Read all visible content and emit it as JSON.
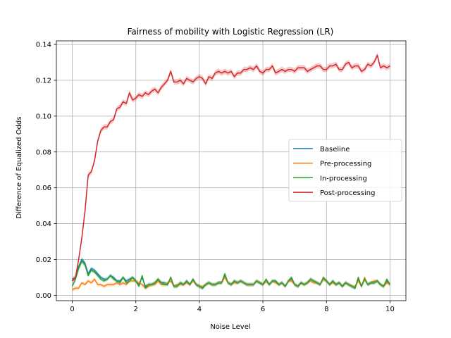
{
  "chart_data": {
    "type": "line",
    "title": "Fairness of mobility with Logistic Regression (LR)",
    "xlabel": "Noise Level",
    "ylabel": "Difference of Equalized Odds",
    "xlim": [
      -0.5,
      10.5
    ],
    "ylim": [
      -0.003,
      0.142
    ],
    "xticks": [
      0,
      2,
      4,
      6,
      8,
      10
    ],
    "yticks": [
      0.0,
      0.02,
      0.04,
      0.06,
      0.08,
      0.1,
      0.12,
      0.14
    ],
    "xtick_labels": [
      "0",
      "2",
      "4",
      "6",
      "8",
      "10"
    ],
    "ytick_labels": [
      "0.00",
      "0.02",
      "0.04",
      "0.06",
      "0.08",
      "0.10",
      "0.12",
      "0.14"
    ],
    "grid": true,
    "legend_position": "center-right",
    "shaded_band": true,
    "x": [
      0,
      0.1,
      0.2,
      0.3,
      0.4,
      0.5,
      0.6,
      0.7,
      0.8,
      0.9,
      1.0,
      1.1,
      1.2,
      1.3,
      1.4,
      1.5,
      1.6,
      1.7,
      1.8,
      1.9,
      2.0,
      2.1,
      2.2,
      2.3,
      2.4,
      2.5,
      2.6,
      2.7,
      2.8,
      2.9,
      3.0,
      3.1,
      3.2,
      3.3,
      3.4,
      3.5,
      3.6,
      3.7,
      3.8,
      3.9,
      4.0,
      4.1,
      4.2,
      4.3,
      4.4,
      4.5,
      4.6,
      4.7,
      4.8,
      4.9,
      5.0,
      5.1,
      5.2,
      5.3,
      5.4,
      5.5,
      5.6,
      5.7,
      5.8,
      5.9,
      6.0,
      6.1,
      6.2,
      6.3,
      6.4,
      6.5,
      6.6,
      6.7,
      6.8,
      6.9,
      7.0,
      7.1,
      7.2,
      7.3,
      7.4,
      7.5,
      7.6,
      7.7,
      7.8,
      7.9,
      8.0,
      8.1,
      8.2,
      8.3,
      8.4,
      8.5,
      8.6,
      8.7,
      8.8,
      8.9,
      9.0,
      9.1,
      9.2,
      9.3,
      9.4,
      9.5,
      9.6,
      9.7,
      9.8,
      9.9,
      10.0
    ],
    "series": [
      {
        "name": "Baseline",
        "color": "#1f77b4",
        "values": [
          0.009,
          0.01,
          0.016,
          0.02,
          0.018,
          0.012,
          0.015,
          0.014,
          0.012,
          0.01,
          0.009,
          0.009,
          0.011,
          0.01,
          0.008,
          0.008,
          0.01,
          0.008,
          0.009,
          0.01,
          0.008,
          0.006,
          0.01,
          0.005,
          0.006,
          0.006,
          0.007,
          0.009,
          0.007,
          0.007,
          0.006,
          0.01,
          0.005,
          0.005,
          0.007,
          0.006,
          0.008,
          0.006,
          0.009,
          0.006,
          0.005,
          0.004,
          0.006,
          0.007,
          0.006,
          0.006,
          0.007,
          0.007,
          0.011,
          0.007,
          0.006,
          0.008,
          0.007,
          0.008,
          0.007,
          0.006,
          0.006,
          0.006,
          0.008,
          0.007,
          0.006,
          0.008,
          0.006,
          0.008,
          0.008,
          0.006,
          0.007,
          0.005,
          0.008,
          0.009,
          0.006,
          0.005,
          0.007,
          0.006,
          0.007,
          0.009,
          0.008,
          0.007,
          0.006,
          0.009,
          0.008,
          0.006,
          0.008,
          0.006,
          0.007,
          0.005,
          0.007,
          0.006,
          0.005,
          0.004,
          0.009,
          0.005,
          0.009,
          0.006,
          0.007,
          0.007,
          0.008,
          0.006,
          0.005,
          0.008,
          0.006
        ],
        "band": [
          0.0012,
          0.0015,
          0.0015,
          0.0015,
          0.0012,
          0.0012,
          0.001,
          0.001,
          0.001,
          0.001,
          0.001,
          0.001,
          0.001,
          0.001,
          0.001,
          0.001,
          0.001,
          0.001,
          0.001,
          0.001,
          0.001,
          0.001,
          0.001,
          0.001,
          0.001,
          0.001,
          0.001,
          0.001,
          0.001,
          0.001,
          0.001,
          0.001,
          0.001,
          0.001,
          0.001,
          0.001,
          0.001,
          0.001,
          0.001,
          0.001,
          0.001,
          0.001,
          0.001,
          0.001,
          0.001,
          0.001,
          0.001,
          0.001,
          0.001,
          0.001,
          0.001,
          0.001,
          0.001,
          0.001,
          0.001,
          0.001,
          0.001,
          0.001,
          0.001,
          0.001,
          0.001,
          0.001,
          0.001,
          0.001,
          0.001,
          0.001,
          0.001,
          0.001,
          0.001,
          0.001,
          0.001,
          0.001,
          0.001,
          0.001,
          0.001,
          0.001,
          0.001,
          0.001,
          0.001,
          0.001,
          0.001,
          0.001,
          0.001,
          0.001,
          0.001,
          0.001,
          0.001,
          0.001,
          0.001,
          0.001,
          0.001,
          0.001,
          0.001,
          0.001,
          0.001,
          0.001,
          0.001,
          0.001,
          0.001,
          0.001,
          0.001
        ]
      },
      {
        "name": "Pre-processing",
        "color": "#ff7f0e",
        "values": [
          0.003,
          0.004,
          0.004,
          0.007,
          0.006,
          0.008,
          0.007,
          0.009,
          0.006,
          0.006,
          0.005,
          0.006,
          0.006,
          0.006,
          0.007,
          0.006,
          0.007,
          0.006,
          0.008,
          0.008,
          0.008,
          0.007,
          0.006,
          0.004,
          0.005,
          0.006,
          0.006,
          0.008,
          0.006,
          0.006,
          0.007,
          0.008,
          0.005,
          0.006,
          0.006,
          0.006,
          0.007,
          0.006,
          0.008,
          0.006,
          0.005,
          0.005,
          0.006,
          0.007,
          0.006,
          0.006,
          0.007,
          0.007,
          0.01,
          0.007,
          0.006,
          0.007,
          0.007,
          0.008,
          0.007,
          0.006,
          0.006,
          0.006,
          0.008,
          0.007,
          0.006,
          0.008,
          0.006,
          0.008,
          0.007,
          0.006,
          0.007,
          0.005,
          0.008,
          0.008,
          0.006,
          0.005,
          0.007,
          0.006,
          0.007,
          0.008,
          0.007,
          0.007,
          0.006,
          0.009,
          0.008,
          0.006,
          0.007,
          0.006,
          0.007,
          0.005,
          0.007,
          0.006,
          0.005,
          0.005,
          0.008,
          0.005,
          0.01,
          0.006,
          0.007,
          0.008,
          0.008,
          0.006,
          0.005,
          0.007,
          0.006
        ],
        "band": [
          0.001,
          0.001,
          0.001,
          0.001,
          0.001,
          0.001,
          0.001,
          0.001,
          0.001,
          0.001,
          0.001,
          0.001,
          0.001,
          0.001,
          0.001,
          0.001,
          0.001,
          0.001,
          0.001,
          0.001,
          0.001,
          0.001,
          0.001,
          0.001,
          0.001,
          0.001,
          0.001,
          0.001,
          0.001,
          0.001,
          0.001,
          0.001,
          0.001,
          0.001,
          0.001,
          0.001,
          0.001,
          0.001,
          0.001,
          0.001,
          0.001,
          0.001,
          0.001,
          0.001,
          0.001,
          0.001,
          0.001,
          0.001,
          0.001,
          0.001,
          0.001,
          0.001,
          0.001,
          0.001,
          0.001,
          0.001,
          0.001,
          0.001,
          0.001,
          0.001,
          0.001,
          0.001,
          0.001,
          0.001,
          0.001,
          0.001,
          0.001,
          0.001,
          0.001,
          0.001,
          0.001,
          0.001,
          0.001,
          0.001,
          0.001,
          0.001,
          0.001,
          0.001,
          0.001,
          0.001,
          0.001,
          0.001,
          0.001,
          0.001,
          0.001,
          0.001,
          0.001,
          0.001,
          0.001,
          0.001,
          0.001,
          0.001,
          0.001,
          0.001,
          0.001,
          0.001,
          0.001,
          0.001,
          0.001,
          0.001,
          0.001
        ]
      },
      {
        "name": "In-processing",
        "color": "#2ca02c",
        "values": [
          0.005,
          0.009,
          0.015,
          0.019,
          0.017,
          0.011,
          0.014,
          0.013,
          0.011,
          0.009,
          0.008,
          0.009,
          0.011,
          0.009,
          0.008,
          0.007,
          0.01,
          0.007,
          0.008,
          0.01,
          0.008,
          0.005,
          0.011,
          0.004,
          0.006,
          0.006,
          0.007,
          0.009,
          0.007,
          0.006,
          0.006,
          0.01,
          0.005,
          0.005,
          0.007,
          0.006,
          0.008,
          0.006,
          0.009,
          0.006,
          0.005,
          0.004,
          0.006,
          0.007,
          0.006,
          0.006,
          0.007,
          0.007,
          0.012,
          0.007,
          0.006,
          0.008,
          0.007,
          0.008,
          0.007,
          0.006,
          0.006,
          0.006,
          0.008,
          0.007,
          0.006,
          0.009,
          0.006,
          0.008,
          0.008,
          0.006,
          0.007,
          0.005,
          0.008,
          0.01,
          0.006,
          0.005,
          0.007,
          0.006,
          0.007,
          0.009,
          0.008,
          0.007,
          0.006,
          0.01,
          0.008,
          0.006,
          0.008,
          0.006,
          0.007,
          0.005,
          0.007,
          0.006,
          0.005,
          0.004,
          0.01,
          0.005,
          0.009,
          0.006,
          0.007,
          0.007,
          0.008,
          0.006,
          0.005,
          0.009,
          0.006
        ],
        "band": [
          0.0012,
          0.0015,
          0.0015,
          0.0015,
          0.0012,
          0.0012,
          0.001,
          0.001,
          0.001,
          0.001,
          0.001,
          0.001,
          0.001,
          0.001,
          0.001,
          0.001,
          0.001,
          0.001,
          0.001,
          0.001,
          0.001,
          0.001,
          0.001,
          0.001,
          0.001,
          0.001,
          0.001,
          0.001,
          0.001,
          0.001,
          0.001,
          0.001,
          0.001,
          0.001,
          0.001,
          0.001,
          0.001,
          0.001,
          0.001,
          0.001,
          0.001,
          0.001,
          0.001,
          0.001,
          0.001,
          0.001,
          0.001,
          0.001,
          0.001,
          0.001,
          0.001,
          0.001,
          0.001,
          0.001,
          0.001,
          0.001,
          0.001,
          0.001,
          0.001,
          0.001,
          0.001,
          0.001,
          0.001,
          0.001,
          0.001,
          0.001,
          0.001,
          0.001,
          0.001,
          0.001,
          0.001,
          0.001,
          0.001,
          0.001,
          0.001,
          0.001,
          0.001,
          0.001,
          0.001,
          0.001,
          0.001,
          0.001,
          0.001,
          0.001,
          0.001,
          0.001,
          0.001,
          0.001,
          0.001,
          0.001,
          0.001,
          0.001,
          0.001,
          0.001,
          0.001,
          0.001,
          0.001,
          0.001,
          0.001,
          0.001,
          0.001
        ]
      },
      {
        "name": "Post-processing",
        "color": "#d62728",
        "values": [
          0.008,
          0.01,
          0.02,
          0.032,
          0.047,
          0.067,
          0.069,
          0.075,
          0.086,
          0.092,
          0.094,
          0.094,
          0.097,
          0.098,
          0.104,
          0.105,
          0.108,
          0.107,
          0.113,
          0.109,
          0.11,
          0.112,
          0.111,
          0.113,
          0.112,
          0.114,
          0.115,
          0.113,
          0.116,
          0.118,
          0.12,
          0.125,
          0.119,
          0.119,
          0.12,
          0.118,
          0.121,
          0.12,
          0.119,
          0.121,
          0.122,
          0.121,
          0.118,
          0.122,
          0.121,
          0.124,
          0.125,
          0.124,
          0.125,
          0.124,
          0.125,
          0.122,
          0.124,
          0.124,
          0.126,
          0.126,
          0.127,
          0.126,
          0.128,
          0.125,
          0.124,
          0.126,
          0.126,
          0.128,
          0.124,
          0.125,
          0.126,
          0.125,
          0.126,
          0.126,
          0.125,
          0.127,
          0.127,
          0.127,
          0.125,
          0.126,
          0.127,
          0.128,
          0.128,
          0.126,
          0.126,
          0.128,
          0.128,
          0.129,
          0.126,
          0.126,
          0.129,
          0.13,
          0.127,
          0.128,
          0.128,
          0.125,
          0.126,
          0.129,
          0.128,
          0.13,
          0.134,
          0.127,
          0.128,
          0.127,
          0.128
        ],
        "band": [
          0.001,
          0.001,
          0.0015,
          0.0015,
          0.0015,
          0.0015,
          0.0015,
          0.0015,
          0.0015,
          0.0015,
          0.0015,
          0.0015,
          0.0015,
          0.0015,
          0.0015,
          0.0015,
          0.0015,
          0.0015,
          0.0015,
          0.0015,
          0.0015,
          0.0015,
          0.0015,
          0.0015,
          0.0015,
          0.0015,
          0.0015,
          0.0015,
          0.0015,
          0.0015,
          0.0015,
          0.0015,
          0.0015,
          0.0015,
          0.0015,
          0.0015,
          0.0015,
          0.0015,
          0.0015,
          0.0015,
          0.0015,
          0.0015,
          0.0015,
          0.0015,
          0.0015,
          0.0015,
          0.0015,
          0.0015,
          0.0015,
          0.0015,
          0.0015,
          0.0015,
          0.0015,
          0.0015,
          0.0015,
          0.0015,
          0.0015,
          0.0015,
          0.0015,
          0.0015,
          0.0015,
          0.0015,
          0.0015,
          0.0015,
          0.0015,
          0.0015,
          0.0015,
          0.0015,
          0.0015,
          0.0015,
          0.0015,
          0.0015,
          0.0015,
          0.0015,
          0.0015,
          0.0015,
          0.0015,
          0.0015,
          0.0015,
          0.0015,
          0.0015,
          0.0015,
          0.0015,
          0.0015,
          0.0015,
          0.0015,
          0.0015,
          0.0015,
          0.0015,
          0.0015,
          0.0015,
          0.0015,
          0.0015,
          0.0015,
          0.0015,
          0.0015,
          0.0015,
          0.0015,
          0.0015,
          0.0015,
          0.0015
        ]
      }
    ]
  }
}
